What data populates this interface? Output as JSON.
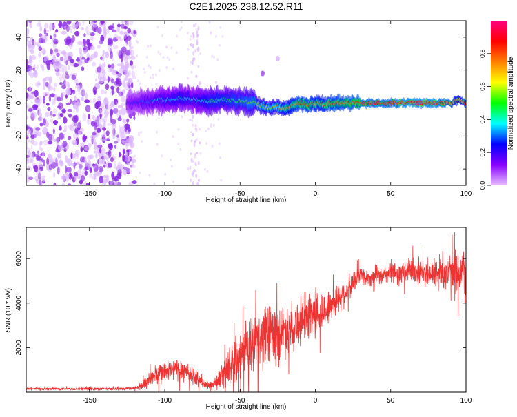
{
  "title": "C2E1.2025.238.12.52.R11",
  "chart_data": [
    {
      "type": "heatmap",
      "title": "C2E1.2025.238.12.52.R11",
      "xlabel": "Height of straight line (km)",
      "ylabel": "Frequency (Hz)",
      "xlim": [
        -192,
        100
      ],
      "ylim": [
        -50,
        50
      ],
      "x_ticks": [
        -150,
        -100,
        -50,
        0,
        50,
        100
      ],
      "x_tick_labels": [
        "-150",
        "-100",
        "-50",
        "0",
        "50",
        "100"
      ],
      "y_ticks": [
        -40,
        -20,
        0,
        20,
        40
      ],
      "y_tick_labels": [
        "-40",
        "-20",
        "0",
        "20",
        "40"
      ],
      "colorbar": {
        "label": "Normalized spectral amplitude",
        "range": [
          0,
          1
        ],
        "ticks": [
          0,
          0.2,
          0.4,
          0.6,
          0.8
        ],
        "tick_labels": [
          "0.0",
          "0.2",
          "0.4",
          "0.6",
          "0.8"
        ],
        "colors": [
          "#e8c0ff",
          "#8800ff",
          "#0000ff",
          "#00ffff",
          "#00ff00",
          "#ffff00",
          "#ff8000",
          "#ff0000",
          "#ff0080"
        ]
      },
      "signal_trace": {
        "x": [
          -125,
          -110,
          -100,
          -90,
          -80,
          -70,
          -60,
          -50,
          -40,
          -35,
          -30,
          -25,
          -20,
          -15,
          -10,
          -5,
          0,
          5,
          10,
          20,
          30,
          40,
          50,
          60,
          70,
          80,
          90,
          95,
          100
        ],
        "freq": [
          0,
          1,
          2,
          3,
          2,
          1,
          2,
          1,
          0,
          -2,
          -3,
          -2,
          -4,
          -1,
          0,
          -1,
          0,
          -1,
          0,
          0,
          0,
          0,
          0,
          0,
          0,
          0,
          0,
          2,
          0
        ],
        "amplitude": [
          0.2,
          0.3,
          0.35,
          0.4,
          0.35,
          0.45,
          0.45,
          0.5,
          0.55,
          0.6,
          0.6,
          0.65,
          0.7,
          0.75,
          0.8,
          0.8,
          0.75,
          0.75,
          0.8,
          0.8,
          0.85,
          0.85,
          0.85,
          0.9,
          0.9,
          0.9,
          0.8,
          0.7,
          0.75
        ]
      },
      "noise_region": {
        "x_range": [
          -192,
          -120
        ],
        "freq_range": [
          -50,
          50
        ],
        "amplitude": 0.1
      },
      "features": [
        {
          "x": -80,
          "freq_range": [
            -50,
            50
          ],
          "amplitude": 0.05
        },
        {
          "x": -35,
          "freq": 18,
          "amplitude": 0.1
        },
        {
          "x": -25,
          "freq": 27,
          "amplitude": 0.05
        }
      ]
    },
    {
      "type": "line",
      "xlabel": "Height of straight line (km)",
      "ylabel": "SNR (10 * v/v)",
      "xlim": [
        -192,
        100
      ],
      "ylim": [
        0,
        7400
      ],
      "x_ticks": [
        -150,
        -100,
        -50,
        0,
        50,
        100
      ],
      "x_tick_labels": [
        "-150",
        "-100",
        "-50",
        "0",
        "50",
        "100"
      ],
      "y_ticks": [
        2000,
        4000,
        6000
      ],
      "y_tick_labels": [
        "2000",
        "4000",
        "6000"
      ],
      "series": [
        {
          "name": "SNR",
          "color": "#ee3333",
          "x": [
            -192,
            -170,
            -150,
            -130,
            -120,
            -115,
            -110,
            -105,
            -100,
            -95,
            -90,
            -85,
            -80,
            -75,
            -70,
            -65,
            -60,
            -55,
            -50,
            -45,
            -40,
            -35,
            -30,
            -25,
            -20,
            -15,
            -10,
            -5,
            0,
            5,
            10,
            15,
            20,
            25,
            30,
            35,
            40,
            45,
            50,
            55,
            60,
            65,
            70,
            75,
            80,
            85,
            90,
            95,
            100
          ],
          "y": [
            150,
            150,
            150,
            150,
            180,
            300,
            600,
            800,
            900,
            1000,
            1050,
            950,
            700,
            400,
            300,
            500,
            900,
            1300,
            1700,
            2000,
            2200,
            2400,
            2600,
            2500,
            2800,
            3000,
            3200,
            3500,
            3600,
            3600,
            3900,
            4200,
            4500,
            4900,
            5300,
            5100,
            5300,
            5200,
            5400,
            5300,
            5400,
            5500,
            5300,
            5400,
            5300,
            5500,
            5200,
            5400,
            5300
          ],
          "noise_amplitude": [
            60,
            60,
            60,
            60,
            80,
            200,
            350,
            500,
            500,
            500,
            550,
            500,
            350,
            200,
            200,
            400,
            700,
            900,
            1100,
            1200,
            1300,
            1400,
            1500,
            1300,
            1200,
            1100,
            1100,
            1100,
            1200,
            900,
            700,
            700,
            600,
            500,
            400,
            400,
            400,
            400,
            500,
            500,
            550,
            600,
            650,
            700,
            800,
            900,
            1000,
            1100,
            1200
          ]
        }
      ]
    }
  ]
}
